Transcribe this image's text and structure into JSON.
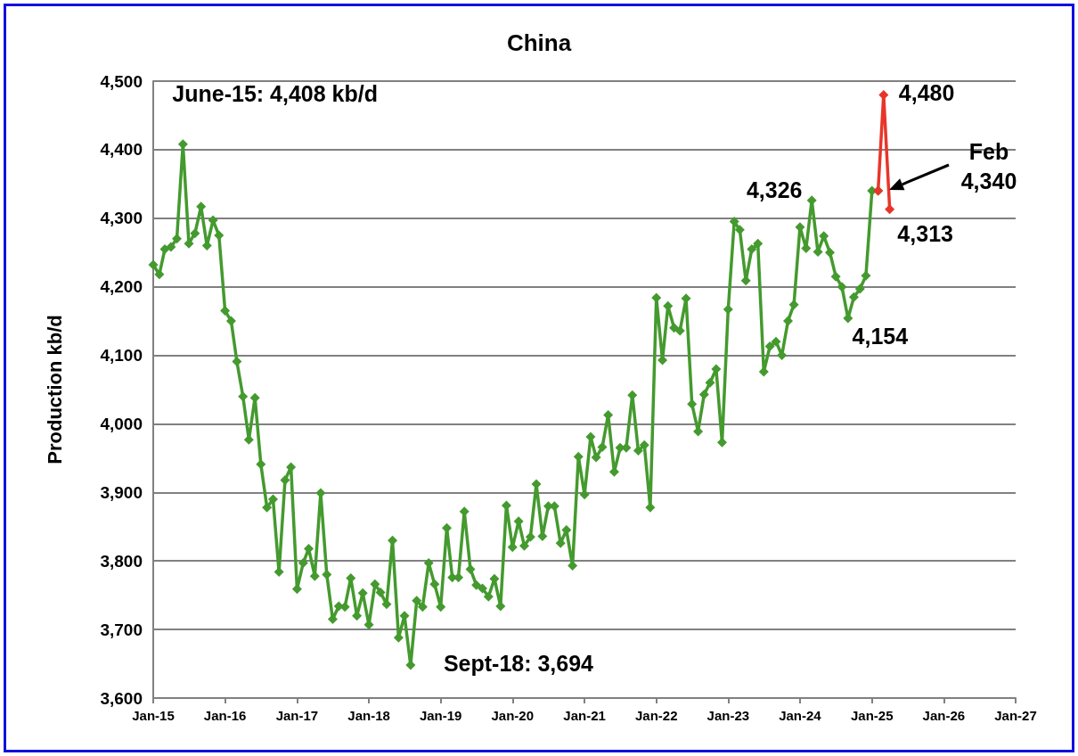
{
  "chart_data": {
    "type": "line",
    "title": "China",
    "ylabel": "Production kb/d",
    "xlim": [
      "2015-01",
      "2027-01"
    ],
    "xticks": [
      {
        "value": "2015-01",
        "label": "Jan-15"
      },
      {
        "value": "2016-01",
        "label": "Jan-16"
      },
      {
        "value": "2017-01",
        "label": "Jan-17"
      },
      {
        "value": "2018-01",
        "label": "Jan-18"
      },
      {
        "value": "2019-01",
        "label": "Jan-19"
      },
      {
        "value": "2020-01",
        "label": "Jan-20"
      },
      {
        "value": "2021-01",
        "label": "Jan-21"
      },
      {
        "value": "2022-01",
        "label": "Jan-22"
      },
      {
        "value": "2023-01",
        "label": "Jan-23"
      },
      {
        "value": "2024-01",
        "label": "Jan-24"
      },
      {
        "value": "2025-01",
        "label": "Jan-25"
      },
      {
        "value": "2026-01",
        "label": "Jan-26"
      },
      {
        "value": "2027-01",
        "label": "Jan-27"
      }
    ],
    "ylim": [
      3600,
      4500
    ],
    "yticks": [
      {
        "value": 3600,
        "label": "3,600"
      },
      {
        "value": 3700,
        "label": "3,700"
      },
      {
        "value": 3800,
        "label": "3,800"
      },
      {
        "value": 3900,
        "label": "3,900"
      },
      {
        "value": 4000,
        "label": "4,000"
      },
      {
        "value": 4100,
        "label": "4,100"
      },
      {
        "value": 4200,
        "label": "4,200"
      },
      {
        "value": 4300,
        "label": "4,300"
      },
      {
        "value": 4400,
        "label": "4,400"
      },
      {
        "value": 4500,
        "label": "4,500"
      }
    ],
    "grid": "y",
    "marker": "diamond",
    "line_style": "solid",
    "series": [
      {
        "color": "#449a2e",
        "x": [
          "2015-01",
          "2015-02",
          "2015-03",
          "2015-04",
          "2015-05",
          "2015-06",
          "2015-07",
          "2015-08",
          "2015-09",
          "2015-10",
          "2015-11",
          "2015-12",
          "2016-01",
          "2016-02",
          "2016-03",
          "2016-04",
          "2016-05",
          "2016-06",
          "2016-07",
          "2016-08",
          "2016-09",
          "2016-10",
          "2016-11",
          "2016-12",
          "2017-01",
          "2017-02",
          "2017-03",
          "2017-04",
          "2017-05",
          "2017-06",
          "2017-07",
          "2017-08",
          "2017-09",
          "2017-10",
          "2017-11",
          "2017-12",
          "2018-01",
          "2018-02",
          "2018-03",
          "2018-04",
          "2018-05",
          "2018-06",
          "2018-07",
          "2018-08",
          "2018-09",
          "2018-10",
          "2018-11",
          "2018-12",
          "2019-01",
          "2019-02",
          "2019-03",
          "2019-04",
          "2019-05",
          "2019-06",
          "2019-07",
          "2019-08",
          "2019-09",
          "2019-10",
          "2019-11",
          "2019-12",
          "2020-01",
          "2020-02",
          "2020-03",
          "2020-04",
          "2020-05",
          "2020-06",
          "2020-07",
          "2020-08",
          "2020-09",
          "2020-10",
          "2020-11",
          "2020-12",
          "2021-01",
          "2021-02",
          "2021-03",
          "2021-04",
          "2021-05",
          "2021-06",
          "2021-07",
          "2021-08",
          "2021-09",
          "2021-10",
          "2021-11",
          "2021-12",
          "2022-01",
          "2022-02",
          "2022-03",
          "2022-04",
          "2022-05",
          "2022-06",
          "2022-07",
          "2022-08",
          "2022-09",
          "2022-10",
          "2022-11",
          "2022-12",
          "2023-01",
          "2023-02",
          "2023-03",
          "2023-04",
          "2023-05",
          "2023-06",
          "2023-07",
          "2023-08",
          "2023-09",
          "2023-10",
          "2023-11",
          "2023-12",
          "2024-01",
          "2024-02",
          "2024-03",
          "2024-04",
          "2024-05",
          "2024-06",
          "2024-07",
          "2024-08",
          "2024-09",
          "2024-10",
          "2024-11",
          "2024-12",
          "2025-01",
          "2025-02"
        ],
        "values": [
          4232,
          4218,
          4255,
          4258,
          4270,
          4408,
          4263,
          4278,
          4317,
          4260,
          4297,
          4275,
          4165,
          4150,
          4091,
          4040,
          3977,
          4038,
          3941,
          3878,
          3890,
          3784,
          3918,
          3937,
          3759,
          3797,
          3818,
          3778,
          3899,
          3780,
          3715,
          3734,
          3733,
          3775,
          3720,
          3753,
          3707,
          3766,
          3754,
          3737,
          3830,
          3688,
          3720,
          3648,
          3742,
          3733,
          3797,
          3766,
          3733,
          3848,
          3776,
          3776,
          3872,
          3788,
          3765,
          3760,
          3748,
          3774,
          3734,
          3881,
          3820,
          3858,
          3822,
          3835,
          3912,
          3836,
          3880,
          3880,
          3826,
          3845,
          3793,
          3952,
          3897,
          3981,
          3951,
          3966,
          4013,
          3930,
          3965,
          3965,
          4042,
          3961,
          3969,
          3878,
          4184,
          4093,
          4172,
          4140,
          4136,
          4183,
          4029,
          3989,
          4043,
          4060,
          4080,
          3973,
          4167,
          4295,
          4283,
          4209,
          4255,
          4263,
          4076,
          4113,
          4120,
          4100,
          4150,
          4174,
          4287,
          4256,
          4326,
          4251,
          4274,
          4250,
          4215,
          4200,
          4154,
          4185,
          4197,
          4216,
          4340,
          4340
        ]
      },
      {
        "color": "#e8352a",
        "x": [
          "2025-02",
          "2025-03",
          "2025-04"
        ],
        "values": [
          4340,
          4480,
          4313
        ]
      }
    ],
    "annotations": [
      {
        "text": "June-15: 4,408 kb/d",
        "x": "2015-06",
        "y": 4408
      },
      {
        "text": "Sept-18: 3,694",
        "x": "2018-08",
        "y": 3648
      },
      {
        "text": "4,326",
        "x": "2024-03",
        "y": 4326
      },
      {
        "text": "4,154",
        "x": "2024-09",
        "y": 4154
      },
      {
        "text": "4,480",
        "x": "2025-03",
        "y": 4480
      },
      {
        "text": "4,313",
        "x": "2025-04",
        "y": 4313
      },
      "Feb 4,340"
    ]
  }
}
